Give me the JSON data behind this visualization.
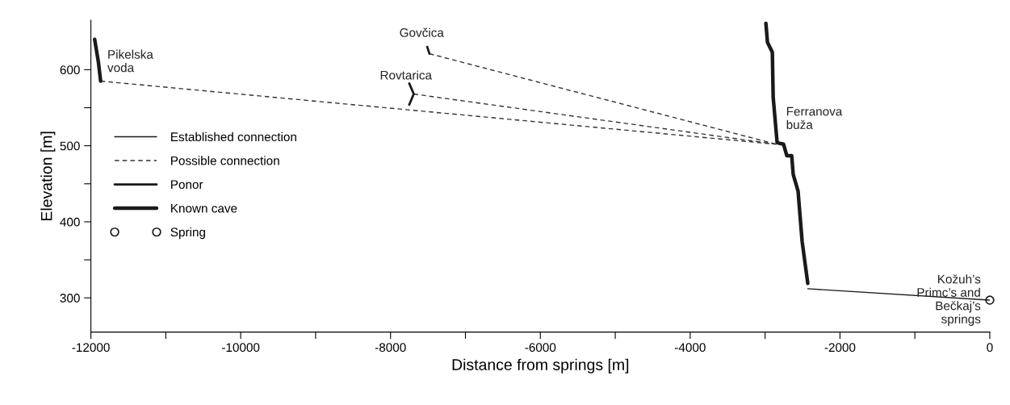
{
  "chart_data": {
    "type": "line",
    "xlabel": "Distance from springs [m]",
    "ylabel": "Elevation [m]",
    "xlim": [
      -12000,
      0
    ],
    "ylim": [
      255,
      665
    ],
    "xticks": [
      -12000,
      {
        "value": -11000,
        "label": null
      },
      -10000,
      {
        "value": -9000,
        "label": null
      },
      -8000,
      {
        "value": -7000,
        "label": null
      },
      -6000,
      {
        "value": -5000,
        "label": null
      },
      -4000,
      {
        "value": -3000,
        "label": null
      },
      -2000,
      {
        "value": -1000,
        "label": null
      },
      0
    ],
    "yticks": [
      300,
      {
        "value": 350,
        "label": null
      },
      400,
      {
        "value": 450,
        "label": null
      },
      500,
      {
        "value": 550,
        "label": null
      },
      600
    ],
    "grid": false,
    "legend": "left",
    "series": [
      {
        "name": "Established connection",
        "color": "#1a1a1a",
        "line_style": "solid",
        "x": [
          -2430,
          0
        ],
        "values": [
          312,
          297
        ]
      },
      {
        "name": "Possible connection",
        "color": "#333333",
        "line_style": "dashed",
        "x": [
          -11870,
          -2850,
          null,
          -7690,
          -2850,
          null,
          -7480,
          -2850
        ],
        "values": [
          585,
          502,
          null,
          568,
          502,
          null,
          621,
          502
        ]
      },
      {
        "name": "Ponor",
        "color": "#1a1a1a",
        "line_style": "solid",
        "x": [
          -7510,
          -7480,
          null,
          -7750,
          -7690,
          -7750
        ],
        "values": [
          630,
          621,
          null,
          582,
          568,
          554
        ]
      },
      {
        "name": "Known cave",
        "color": "#1a1a1a",
        "line_style": "solid",
        "x": [
          -11950,
          -11900,
          -11870,
          null,
          -2989,
          -2968,
          -2903,
          -2892,
          -2839,
          -2753,
          -2710,
          -2645,
          -2624,
          -2559,
          -2548,
          -2505,
          -2430
        ],
        "values": [
          640,
          610,
          585,
          null,
          661,
          636,
          623,
          564,
          504,
          502,
          487,
          487,
          462,
          440,
          426,
          374,
          319
        ]
      },
      {
        "name": "Spring",
        "type": "scatter",
        "marker": "circle",
        "color": "#1a1a1a",
        "x": [
          0
        ],
        "values": [
          297
        ]
      }
    ],
    "annotations": [
      {
        "text": "Pikelska\nvoda",
        "x": -11900,
        "y": 610
      },
      {
        "text": "Govčica",
        "x": -7510,
        "y": 628
      },
      {
        "text": "Rovtarica",
        "x": -7720,
        "y": 575
      },
      {
        "text": "Ferranova\nbuža",
        "x": -2839,
        "y": 504
      },
      {
        "text": "Kožuh’s\nPrimc’s and\nBečkaj’s\nsprings",
        "x": 0,
        "y": 297
      }
    ]
  }
}
